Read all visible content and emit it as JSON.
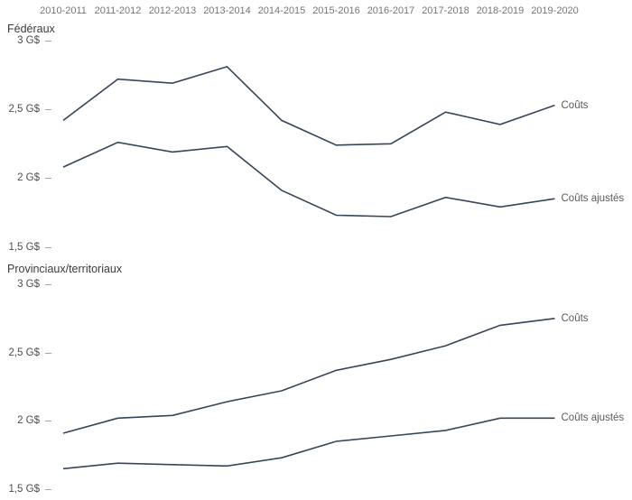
{
  "colors": {
    "background": "#ffffff",
    "line": "#36455a",
    "year_label": "#767676",
    "axis_label": "#4d4d4d",
    "title": "#3b3b3b",
    "series_label": "#595959",
    "tick": "#a6a6a6"
  },
  "x_axis": {
    "categories": [
      "2010-2011",
      "2011-2012",
      "2012-2013",
      "2013-2014",
      "2014-2015",
      "2015-2016",
      "2016-2017",
      "2017-2018",
      "2018-2019",
      "2019-2020"
    ],
    "position": "top"
  },
  "chart_data": [
    {
      "type": "line",
      "title": "Fédéraux",
      "categories": [
        "2010-2011",
        "2011-2012",
        "2012-2013",
        "2013-2014",
        "2014-2015",
        "2015-2016",
        "2016-2017",
        "2017-2018",
        "2018-2019",
        "2019-2020"
      ],
      "xlabel": "",
      "ylabel": "",
      "unit": "G$",
      "ylim": [
        1.5,
        3
      ],
      "yticks": [
        {
          "label": "3 G$",
          "value": 3
        },
        {
          "label": "2,5 G$",
          "value": 2.5
        },
        {
          "label": "2 G$",
          "value": 2
        },
        {
          "label": "1,5 G$",
          "value": 1.5
        }
      ],
      "grid": false,
      "legend_position": "line-end-labels",
      "series": [
        {
          "key": "couts",
          "name": "Coûts",
          "values": [
            2.42,
            2.72,
            2.69,
            2.81,
            2.42,
            2.24,
            2.25,
            2.48,
            2.39,
            2.53
          ]
        },
        {
          "key": "couts-ajustes",
          "name": "Coûts ajustés",
          "values": [
            2.08,
            2.26,
            2.19,
            2.23,
            1.91,
            1.73,
            1.72,
            1.86,
            1.79,
            1.85
          ]
        }
      ]
    },
    {
      "type": "line",
      "title": "Provinciaux/territoriaux",
      "categories": [
        "2010-2011",
        "2011-2012",
        "2012-2013",
        "2013-2014",
        "2014-2015",
        "2015-2016",
        "2016-2017",
        "2017-2018",
        "2018-2019",
        "2019-2020"
      ],
      "xlabel": "",
      "ylabel": "",
      "unit": "G$",
      "ylim": [
        1.5,
        3
      ],
      "yticks": [
        {
          "label": "3 G$",
          "value": 3
        },
        {
          "label": "2,5 G$",
          "value": 2.5
        },
        {
          "label": "2 G$",
          "value": 2
        },
        {
          "label": "1,5 G$",
          "value": 1.5
        }
      ],
      "grid": false,
      "legend_position": "line-end-labels",
      "series": [
        {
          "key": "couts",
          "name": "Coûts",
          "values": [
            1.91,
            2.02,
            2.04,
            2.14,
            2.22,
            2.37,
            2.45,
            2.55,
            2.7,
            2.75
          ]
        },
        {
          "key": "couts-ajustes",
          "name": "Coûts ajustés",
          "values": [
            1.65,
            1.69,
            1.68,
            1.67,
            1.73,
            1.85,
            1.89,
            1.93,
            2.02,
            2.02
          ]
        }
      ]
    }
  ]
}
